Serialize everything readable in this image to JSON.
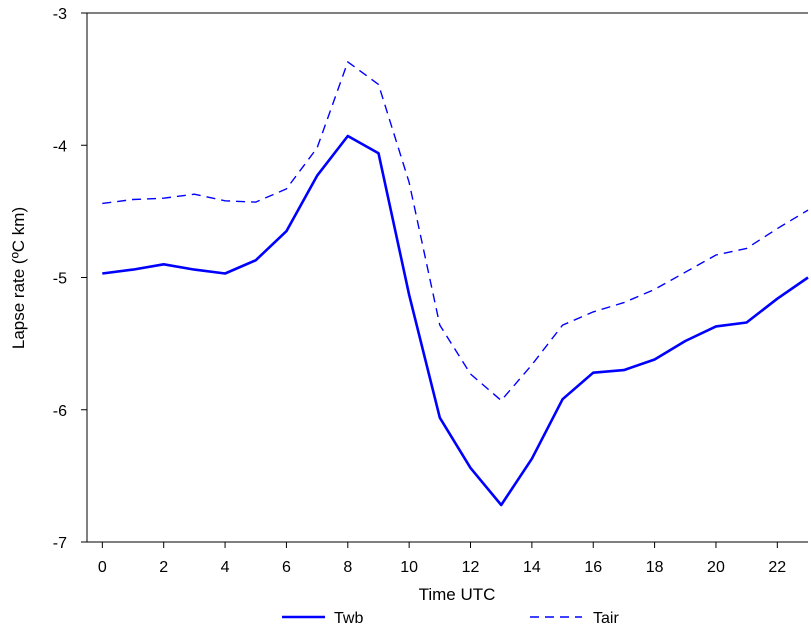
{
  "chart_data": {
    "type": "line",
    "title": "",
    "xlabel": "Time UTC",
    "ylabel": "Lapse rate (ºC km)",
    "xlim": [
      -0.5,
      23
    ],
    "ylim": [
      -7,
      -3
    ],
    "xticks": [
      0,
      2,
      4,
      6,
      8,
      10,
      12,
      14,
      16,
      18,
      20,
      22
    ],
    "yticks": [
      -7,
      -6,
      -5,
      -4,
      -3
    ],
    "x": [
      0,
      1,
      2,
      3,
      4,
      5,
      6,
      7,
      8,
      9,
      10,
      11,
      12,
      13,
      14,
      15,
      16,
      17,
      18,
      19,
      20,
      21,
      22,
      23
    ],
    "series": [
      {
        "name": "Twb",
        "style": "solid",
        "color": "#0000ff",
        "values": [
          -4.97,
          -4.94,
          -4.9,
          -4.94,
          -4.97,
          -4.87,
          -4.65,
          -4.23,
          -3.93,
          -4.06,
          -5.13,
          -6.06,
          -6.44,
          -6.72,
          -6.37,
          -5.92,
          -5.72,
          -5.7,
          -5.62,
          -5.48,
          -5.37,
          -5.34,
          -5.16,
          -5.0
        ]
      },
      {
        "name": "Tair",
        "style": "dashed",
        "color": "#0000ff",
        "values": [
          -4.44,
          -4.41,
          -4.4,
          -4.37,
          -4.42,
          -4.43,
          -4.33,
          -4.02,
          -3.37,
          -3.54,
          -4.28,
          -5.36,
          -5.73,
          -5.93,
          -5.66,
          -5.36,
          -5.26,
          -5.19,
          -5.09,
          -4.96,
          -4.83,
          -4.78,
          -4.63,
          -4.49
        ]
      }
    ],
    "legend_position": "bottom",
    "grid": false
  }
}
